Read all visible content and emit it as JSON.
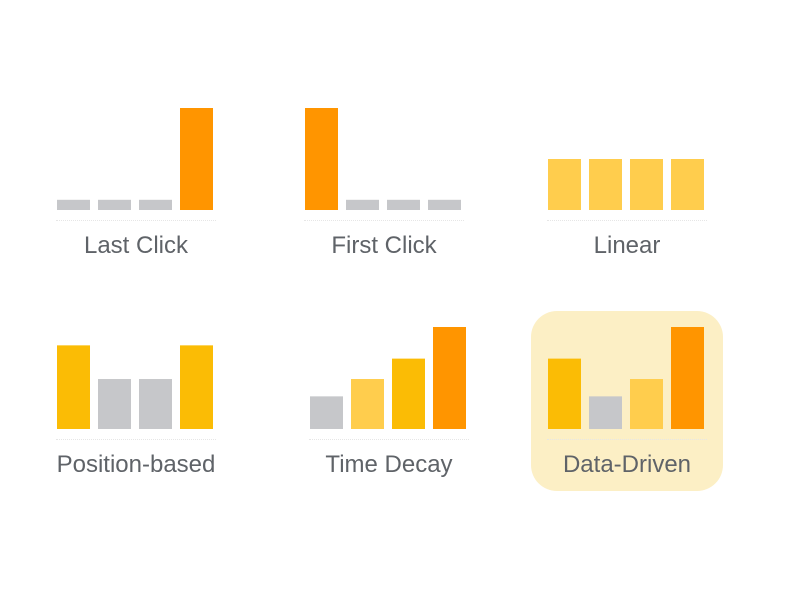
{
  "colors": {
    "dark_orange": "#ff9500",
    "amber": "#fbbc05",
    "light_yellow": "#ffcd4d",
    "gray": "#c6c7ca",
    "highlight_bg": "#fcefc5",
    "label": "#5f6368"
  },
  "chart_data": [
    {
      "type": "bar",
      "title": "Last Click",
      "values": [
        0.1,
        0.1,
        0.1,
        1.0
      ],
      "colors": [
        "gray",
        "gray",
        "gray",
        "dark_orange"
      ],
      "highlighted": false
    },
    {
      "type": "bar",
      "title": "First Click",
      "values": [
        1.0,
        0.1,
        0.1,
        0.1
      ],
      "colors": [
        "dark_orange",
        "gray",
        "gray",
        "gray"
      ],
      "highlighted": false
    },
    {
      "type": "bar",
      "title": "Linear",
      "values": [
        0.5,
        0.5,
        0.5,
        0.5
      ],
      "colors": [
        "light_yellow",
        "light_yellow",
        "light_yellow",
        "light_yellow"
      ],
      "highlighted": false
    },
    {
      "type": "bar",
      "title": "Position-based",
      "values": [
        0.82,
        0.49,
        0.49,
        0.82
      ],
      "colors": [
        "amber",
        "gray",
        "gray",
        "amber"
      ],
      "highlighted": false
    },
    {
      "type": "bar",
      "title": "Time Decay",
      "values": [
        0.32,
        0.49,
        0.69,
        1.0
      ],
      "colors": [
        "gray",
        "light_yellow",
        "amber",
        "dark_orange"
      ],
      "highlighted": false
    },
    {
      "type": "bar",
      "title": "Data-Driven",
      "values": [
        0.69,
        0.32,
        0.49,
        1.0
      ],
      "colors": [
        "amber",
        "gray",
        "light_yellow",
        "dark_orange"
      ],
      "highlighted": true
    }
  ]
}
